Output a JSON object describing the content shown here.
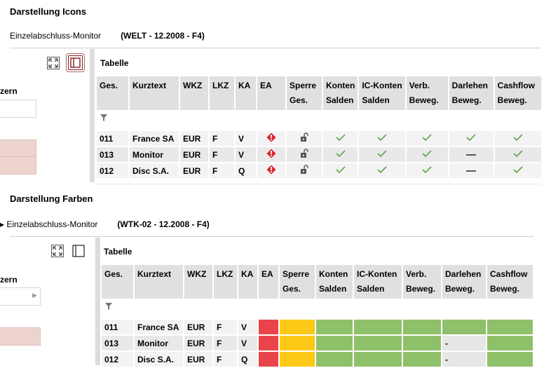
{
  "sections": [
    {
      "title": "Darstellung Icons",
      "app_name": "Einzelabschluss-Monitor",
      "context": "(WELT - 12.2008 - F4)",
      "left_label": "zern",
      "table_title": "Tabelle",
      "headers": [
        [
          "Ges.",
          ""
        ],
        [
          "Kurztext",
          ""
        ],
        [
          "WKZ",
          ""
        ],
        [
          "LKZ",
          ""
        ],
        [
          "KA",
          ""
        ],
        [
          "EA",
          ""
        ],
        [
          "Sperre",
          "Ges."
        ],
        [
          "Konten",
          "Salden"
        ],
        [
          "IC-Konten",
          "Salden"
        ],
        [
          "Verb.",
          "Beweg."
        ],
        [
          "Darlehen",
          "Beweg."
        ],
        [
          "Cashflow",
          "Beweg."
        ]
      ],
      "rows": [
        {
          "ges": "011",
          "kurztext": "France SA",
          "wkz": "EUR",
          "lkz": "F",
          "ka": "V",
          "status": [
            "check",
            "check",
            "check",
            "check",
            "check"
          ]
        },
        {
          "ges": "013",
          "kurztext": "Monitor",
          "wkz": "EUR",
          "lkz": "F",
          "ka": "V",
          "status": [
            "check",
            "check",
            "check",
            "dash",
            "check"
          ]
        },
        {
          "ges": "012",
          "kurztext": "Disc S.A.",
          "wkz": "EUR",
          "lkz": "F",
          "ka": "Q",
          "status": [
            "check",
            "check",
            "check",
            "dash",
            "check"
          ]
        }
      ]
    },
    {
      "title": "Darstellung Farben",
      "app_name": "▸ Einzelabschluss-Monitor",
      "context": "(WTK-02 - 12.2008 - F4)",
      "left_label": "zern",
      "table_title": "Tabelle",
      "headers": [
        [
          "Ges.",
          ""
        ],
        [
          "Kurztext",
          ""
        ],
        [
          "WKZ",
          ""
        ],
        [
          "LKZ",
          ""
        ],
        [
          "KA",
          ""
        ],
        [
          "EA",
          ""
        ],
        [
          "Sperre",
          "Ges."
        ],
        [
          "Konten",
          "Salden"
        ],
        [
          "IC-Konten",
          "Salden"
        ],
        [
          "Verb.",
          "Beweg."
        ],
        [
          "Darlehen",
          "Beweg."
        ],
        [
          "Cashflow",
          "Beweg."
        ]
      ],
      "rows": [
        {
          "ges": "011",
          "kurztext": "France SA",
          "wkz": "EUR",
          "lkz": "F",
          "ka": "V",
          "darlehen": ""
        },
        {
          "ges": "013",
          "kurztext": "Monitor",
          "wkz": "EUR",
          "lkz": "F",
          "ka": "V",
          "darlehen": "-"
        },
        {
          "ges": "012",
          "kurztext": "Disc S.A.",
          "wkz": "EUR",
          "lkz": "F",
          "ka": "Q",
          "darlehen": "-"
        }
      ]
    }
  ],
  "icons": {
    "filter": "filter-icon",
    "warning": "warning-icon",
    "lock": "unlock-icon",
    "check": "check-icon",
    "dash": "dash-icon",
    "expand": "expand-icon",
    "panel": "panel-toggle-icon"
  },
  "colors": {
    "red": "#e8444a",
    "yellow": "#fdc816",
    "green": "#8fc06a",
    "gray": "#e7e7e7"
  }
}
